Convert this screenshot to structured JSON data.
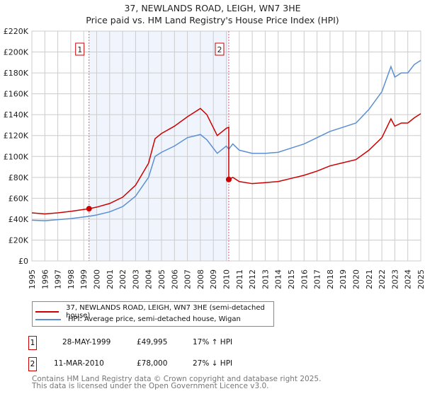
{
  "chart_data": {
    "type": "line",
    "title": "37, NEWLANDS ROAD, LEIGH, WN7 3HE",
    "subtitle": "Price paid vs. HM Land Registry's House Price Index (HPI)",
    "xlim": [
      1995,
      2025
    ],
    "ylim": [
      0,
      220000
    ],
    "xticks": [
      "1995",
      "1996",
      "1997",
      "1998",
      "1999",
      "2000",
      "2001",
      "2002",
      "2003",
      "2004",
      "2005",
      "2006",
      "2007",
      "2008",
      "2009",
      "2010",
      "2011",
      "2012",
      "2013",
      "2014",
      "2015",
      "2016",
      "2017",
      "2018",
      "2019",
      "2020",
      "2021",
      "2022",
      "2023",
      "2024",
      "2025"
    ],
    "yticks": [
      {
        "v": 0,
        "l": "£0"
      },
      {
        "v": 20000,
        "l": "£20K"
      },
      {
        "v": 40000,
        "l": "£40K"
      },
      {
        "v": 60000,
        "l": "£60K"
      },
      {
        "v": 80000,
        "l": "£80K"
      },
      {
        "v": 100000,
        "l": "£100K"
      },
      {
        "v": 120000,
        "l": "£120K"
      },
      {
        "v": 140000,
        "l": "£140K"
      },
      {
        "v": 160000,
        "l": "£160K"
      },
      {
        "v": 180000,
        "l": "£180K"
      },
      {
        "v": 200000,
        "l": "£200K"
      },
      {
        "v": 220000,
        "l": "£220K"
      }
    ],
    "grid": true,
    "shaded_range": [
      1999.41,
      2010.19
    ],
    "series": [
      {
        "name": "37, NEWLANDS ROAD, LEIGH, WN7 3HE (semi-detached house)",
        "color": "#cc0000",
        "x": [
          1995,
          1996,
          1997,
          1998,
          1999.41,
          2000,
          2001,
          2002,
          2003,
          2004,
          2004.5,
          2005,
          2006,
          2007,
          2008,
          2008.5,
          2009.3,
          2010,
          2010.19,
          2010.19,
          2010.5,
          2011,
          2012,
          2013,
          2014,
          2015,
          2016,
          2017,
          2018,
          2019,
          2020,
          2021,
          2022,
          2022.7,
          2023,
          2023.5,
          2024,
          2024.5,
          2025
        ],
        "y": [
          46000,
          45000,
          46000,
          47500,
          49995,
          51500,
          55000,
          61000,
          72500,
          93500,
          117000,
          122000,
          129000,
          138000,
          146000,
          140000,
          120000,
          127000,
          128000,
          78000,
          80000,
          76000,
          74000,
          75000,
          76000,
          79000,
          82000,
          86000,
          91000,
          94000,
          97000,
          106000,
          118000,
          136000,
          129000,
          132000,
          132000,
          137000,
          141000
        ]
      },
      {
        "name": "HPI: Average price, semi-detached house, Wigan",
        "color": "#5b8fd4",
        "x": [
          1995,
          1996,
          1997,
          1998,
          1999.41,
          2000,
          2001,
          2002,
          2003,
          2004,
          2004.5,
          2005,
          2006,
          2007,
          2008,
          2008.5,
          2009.3,
          2010,
          2010.19,
          2010.5,
          2011,
          2012,
          2013,
          2014,
          2015,
          2016,
          2017,
          2018,
          2019,
          2020,
          2021,
          2022,
          2022.7,
          2023,
          2023.5,
          2024,
          2024.5,
          2025
        ],
        "y": [
          39000,
          38500,
          39500,
          40500,
          42700,
          44000,
          47000,
          52000,
          62000,
          80000,
          100000,
          104000,
          110000,
          118000,
          121000,
          116000,
          103000,
          110000,
          107000,
          112000,
          106000,
          103000,
          103000,
          104000,
          108000,
          112000,
          118000,
          124000,
          128000,
          132000,
          145000,
          162000,
          186000,
          176000,
          180000,
          180000,
          188000,
          192000
        ]
      }
    ],
    "sales": [
      {
        "n": "1",
        "x": 1999.41,
        "y": 49995
      },
      {
        "n": "2",
        "x": 2010.19,
        "y": 78000
      }
    ],
    "legend_placement": "below"
  },
  "legend": {
    "property": "37, NEWLANDS ROAD, LEIGH, WN7 3HE (semi-detached house)",
    "hpi": "HPI: Average price, semi-detached house, Wigan"
  },
  "transactions": [
    {
      "n": "1",
      "date": "28-MAY-1999",
      "price": "£49,995",
      "hpi": "17% ↑ HPI"
    },
    {
      "n": "2",
      "date": "11-MAR-2010",
      "price": "£78,000",
      "hpi": "27% ↓ HPI"
    }
  ],
  "footer": [
    "Contains HM Land Registry data © Crown copyright and database right 2025.",
    "This data is licensed under the Open Government Licence v3.0."
  ]
}
